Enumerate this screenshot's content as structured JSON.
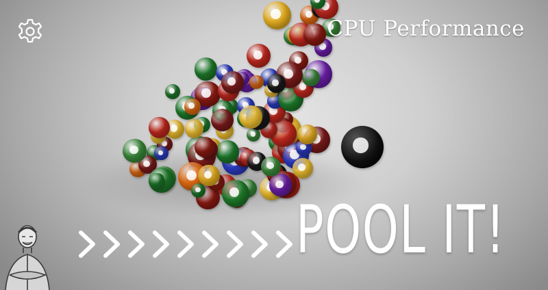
{
  "header": {
    "title": "CPU Performance",
    "settings_icon": "gear-icon"
  },
  "headline": "POOL IT!",
  "chevrons": {
    "count": 9,
    "icon": "chevron-right-icon"
  },
  "avatar": {
    "icon": "person-sketch-icon"
  },
  "colors": {
    "text": "#ffffff",
    "background": "#cfcfcf"
  }
}
